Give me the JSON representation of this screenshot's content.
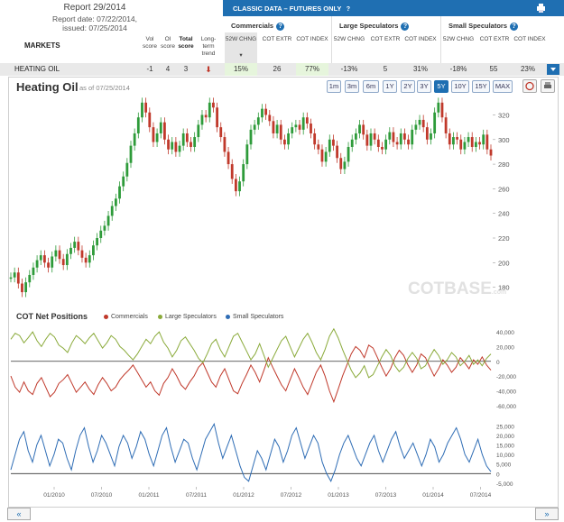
{
  "header": {
    "report_title": "Report 29/2014",
    "report_date": "Report date: 07/22/2014,",
    "issued": "issued: 07/25/2014",
    "markets_label": "MARKETS",
    "vol_score": "Vol score",
    "oi_score": "OI score",
    "total_score": "Total score",
    "long_term_trend": "Long-term trend",
    "classic_title": "CLASSIC DATA – FUTURES ONLY",
    "groups": [
      "Commercials",
      "Large Speculators",
      "Small Speculators"
    ],
    "sub_cols": [
      "52W CHNG",
      "COT EXTR",
      "COT INDEX"
    ]
  },
  "row": {
    "market": "HEATING OIL",
    "vol": "-1",
    "oi": "4",
    "total": "3",
    "trend_icon": "arrow-down-icon",
    "commercials": [
      "15%",
      "26",
      "77%"
    ],
    "large": [
      "-13%",
      "5",
      "31%"
    ],
    "small": [
      "-18%",
      "55",
      "23%"
    ]
  },
  "chart": {
    "title": "Heating Oil",
    "asof": "as of 07/25/2014",
    "ranges": [
      "1m",
      "3m",
      "6m",
      "1Y",
      "2Y",
      "3Y",
      "5Y",
      "10Y",
      "15Y",
      "MAX"
    ],
    "active_range": "5Y",
    "watermark": "COTBASE",
    "watermark_suffix": ".com",
    "cot_title": "COT Net Positions",
    "legend": [
      "Commercials",
      "Large Speculators",
      "Small Speculators"
    ],
    "colors": {
      "commercials": "#c0392b",
      "large": "#8aaa3a",
      "small": "#2f6db5",
      "up": "#2e9b3a",
      "down": "#c0392b"
    },
    "nav_left": "«",
    "nav_right": "»"
  },
  "chart_data": [
    {
      "type": "line",
      "title": "Heating Oil",
      "ylabel": "",
      "y_ticks": [
        180,
        200,
        220,
        240,
        260,
        280,
        300,
        320
      ],
      "ylim": [
        168,
        335
      ],
      "x_ticks": [
        "01/2010",
        "07/2010",
        "01/2011",
        "07/2011",
        "01/2012",
        "07/2012",
        "01/2013",
        "07/2013",
        "01/2014",
        "07/2014"
      ],
      "series": [
        {
          "values": [
            188,
            192,
            183,
            176,
            184,
            190,
            196,
            202,
            206,
            200,
            196,
            205,
            210,
            203,
            198,
            207,
            212,
            217,
            210,
            204,
            200,
            206,
            214,
            220,
            226,
            230,
            238,
            246,
            252,
            262,
            270,
            281,
            295,
            305,
            318,
            330,
            322,
            310,
            298,
            305,
            314,
            300,
            292,
            298,
            290,
            295,
            305,
            298,
            294,
            302,
            312,
            320,
            318,
            330,
            326,
            310,
            302,
            290,
            280,
            268,
            258,
            266,
            280,
            296,
            308,
            312,
            318,
            325,
            320,
            315,
            305,
            312,
            300,
            296,
            305,
            310,
            312,
            308,
            318,
            313,
            305,
            296,
            292,
            282,
            290,
            300,
            295,
            285,
            276,
            282,
            294,
            300,
            305,
            312,
            304,
            295,
            305,
            300,
            294,
            292,
            300,
            306,
            298,
            296,
            305,
            300,
            296,
            308,
            312,
            316,
            310,
            300,
            305,
            322,
            330,
            318,
            305,
            296,
            302,
            300,
            292,
            298,
            302,
            294,
            298,
            296,
            304,
            292,
            287
          ]
        }
      ]
    },
    {
      "type": "line",
      "title": "COT Net Positions",
      "y_ticks": [
        40000,
        20000,
        0,
        -20000,
        -40000,
        -60000
      ],
      "series": [
        {
          "name": "Commercials",
          "values": [
            -20000,
            -35000,
            -42000,
            -28000,
            -40000,
            -45000,
            -30000,
            -22000,
            -35000,
            -48000,
            -42000,
            -30000,
            -25000,
            -18000,
            -30000,
            -42000,
            -35000,
            -28000,
            -38000,
            -45000,
            -32000,
            -22000,
            -30000,
            -40000,
            -35000,
            -25000,
            -18000,
            -12000,
            -5000,
            -15000,
            -25000,
            -35000,
            -28000,
            -40000,
            -46000,
            -30000,
            -22000,
            -10000,
            -20000,
            -32000,
            -38000,
            -28000,
            -20000,
            -8000,
            -2000,
            -15000,
            -28000,
            -35000,
            -20000,
            -10000,
            -25000,
            -40000,
            -44000,
            -30000,
            -18000,
            -5000,
            -15000,
            -28000,
            -12000,
            5000,
            -8000,
            -20000,
            -32000,
            -40000,
            -25000,
            -10000,
            -22000,
            -35000,
            -45000,
            -30000,
            -15000,
            -5000,
            -20000,
            -40000,
            -55000,
            -38000,
            -20000,
            -5000,
            10000,
            20000,
            15000,
            5000,
            22000,
            18000,
            5000,
            -8000,
            -20000,
            -10000,
            5000,
            15000,
            8000,
            -5000,
            -15000,
            -5000,
            10000,
            5000,
            -8000,
            -20000,
            -10000,
            2000,
            -5000,
            -15000,
            -8000,
            5000,
            -2000,
            -10000,
            2000,
            -4000,
            6000,
            -5000,
            -12000
          ]
        },
        {
          "name": "Large Speculators",
          "values": [
            30000,
            38000,
            35000,
            25000,
            32000,
            40000,
            28000,
            20000,
            30000,
            38000,
            33000,
            22000,
            18000,
            12000,
            25000,
            35000,
            30000,
            24000,
            32000,
            38000,
            28000,
            18000,
            25000,
            35000,
            30000,
            20000,
            15000,
            8000,
            2000,
            10000,
            20000,
            30000,
            24000,
            34000,
            40000,
            26000,
            18000,
            6000,
            15000,
            28000,
            33000,
            24000,
            15000,
            4000,
            -2000,
            10000,
            24000,
            30000,
            16000,
            6000,
            20000,
            34000,
            38000,
            26000,
            14000,
            2000,
            10000,
            24000,
            8000,
            -8000,
            4000,
            16000,
            28000,
            34000,
            20000,
            6000,
            18000,
            30000,
            38000,
            26000,
            12000,
            2000,
            16000,
            34000,
            44000,
            32000,
            16000,
            2000,
            -12000,
            -22000,
            -16000,
            -6000,
            -22000,
            -18000,
            -6000,
            6000,
            16000,
            8000,
            -6000,
            -14000,
            -8000,
            4000,
            12000,
            4000,
            -10000,
            -6000,
            6000,
            16000,
            8000,
            -4000,
            2000,
            12000,
            6000,
            -6000,
            0,
            8000,
            -4000,
            2000,
            -6000,
            4000,
            10000
          ]
        },
        {
          "name": "Small Speculators",
          "values": [
            2000,
            10000,
            18000,
            22000,
            12000,
            6000,
            15000,
            20000,
            12000,
            4000,
            10000,
            18000,
            16000,
            8000,
            2000,
            12000,
            20000,
            24000,
            14000,
            6000,
            12000,
            20000,
            16000,
            10000,
            4000,
            14000,
            20000,
            16000,
            8000,
            14000,
            22000,
            18000,
            10000,
            4000,
            12000,
            20000,
            24000,
            14000,
            6000,
            12000,
            18000,
            16000,
            8000,
            2000,
            10000,
            18000,
            22000,
            26000,
            16000,
            8000,
            14000,
            20000,
            12000,
            4000,
            -2000,
            -4000,
            4000,
            12000,
            8000,
            2000,
            10000,
            18000,
            14000,
            6000,
            12000,
            20000,
            24000,
            16000,
            8000,
            14000,
            20000,
            16000,
            6000,
            0,
            -4000,
            2000,
            10000,
            16000,
            20000,
            14000,
            8000,
            4000,
            10000,
            16000,
            20000,
            12000,
            6000,
            12000,
            18000,
            22000,
            14000,
            8000,
            12000,
            16000,
            10000,
            4000,
            10000,
            18000,
            14000,
            6000,
            10000,
            16000,
            20000,
            24000,
            18000,
            10000,
            6000,
            12000,
            18000,
            10000,
            4000,
            1000
          ]
        }
      ]
    }
  ]
}
